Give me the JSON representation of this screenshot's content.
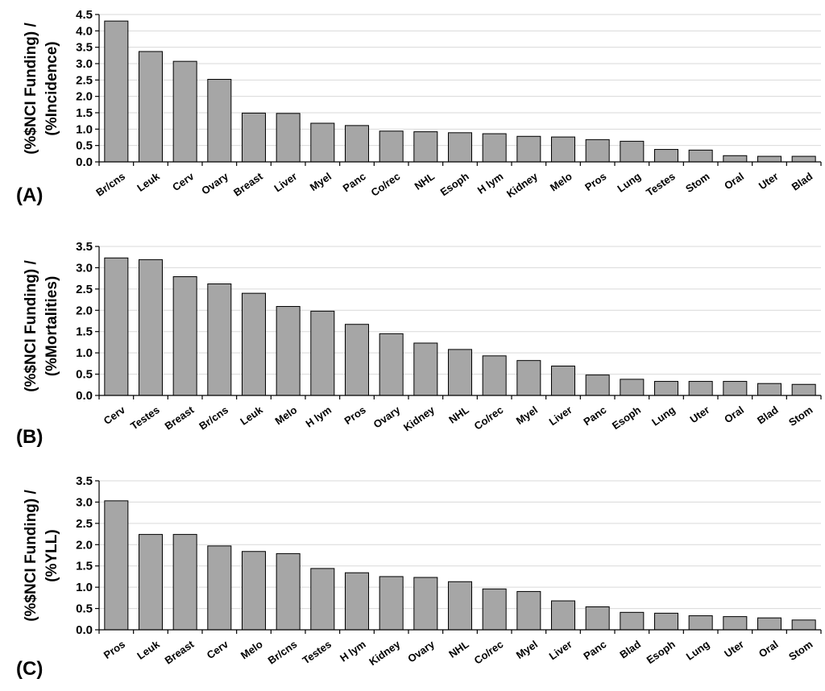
{
  "style": {
    "bar_color": "#a6a6a6",
    "grid_color": "#d9d9d9"
  },
  "chart_data": [
    {
      "type": "bar",
      "panel_label": "(A)",
      "ylabel": [
        "(%$NCI Funding) /",
        "(%Incidence)"
      ],
      "ylim": [
        0,
        4.5
      ],
      "yticks": [
        "0.0",
        "0.5",
        "1.0",
        "1.5",
        "2.0",
        "2.5",
        "3.0",
        "3.5",
        "4.0",
        "4.5"
      ],
      "grid": true,
      "categories": [
        "Br/cns",
        "Leuk",
        "Cerv",
        "Ovary",
        "Breast",
        "Liver",
        "Myel",
        "Panc",
        "Co/rec",
        "NHL",
        "Esoph",
        "H lym",
        "Kidney",
        "Melo",
        "Pros",
        "Lung",
        "Testes",
        "Stom",
        "Oral",
        "Uter",
        "Blad"
      ],
      "values": [
        4.3,
        3.37,
        3.07,
        2.52,
        1.49,
        1.48,
        1.18,
        1.11,
        0.94,
        0.92,
        0.89,
        0.86,
        0.78,
        0.76,
        0.68,
        0.63,
        0.38,
        0.36,
        0.19,
        0.17,
        0.17
      ]
    },
    {
      "type": "bar",
      "panel_label": "(B)",
      "ylabel": [
        "(%$NCI Funding) /",
        "(%Mortalities)"
      ],
      "ylim": [
        0,
        3.5
      ],
      "yticks": [
        "0.0",
        "0.5",
        "1.0",
        "1.5",
        "2.0",
        "2.5",
        "3.0",
        "3.5"
      ],
      "grid": true,
      "categories": [
        "Cerv",
        "Testes",
        "Breast",
        "Br/cns",
        "Leuk",
        "Melo",
        "H lym",
        "Pros",
        "Ovary",
        "Kidney",
        "NHL",
        "Co/rec",
        "Myel",
        "Liver",
        "Panc",
        "Esoph",
        "Lung",
        "Uter",
        "Oral",
        "Blad",
        "Stom"
      ],
      "values": [
        3.23,
        3.19,
        2.79,
        2.62,
        2.4,
        2.09,
        1.98,
        1.67,
        1.45,
        1.23,
        1.08,
        0.93,
        0.82,
        0.69,
        0.48,
        0.38,
        0.33,
        0.33,
        0.33,
        0.28,
        0.26
      ]
    },
    {
      "type": "bar",
      "panel_label": "(C)",
      "ylabel": [
        "(%$NCI Funding) /",
        "(%YLL)"
      ],
      "ylim": [
        0,
        3.5
      ],
      "yticks": [
        "0.0",
        "0.5",
        "1.0",
        "1.5",
        "2.0",
        "2.5",
        "3.0",
        "3.5"
      ],
      "grid": true,
      "categories": [
        "Pros",
        "Leuk",
        "Breast",
        "Cerv",
        "Melo",
        "Br/cns",
        "Testes",
        "H lym",
        "Kidney",
        "Ovary",
        "NHL",
        "Co/rec",
        "Myel",
        "Liver",
        "Panc",
        "Blad",
        "Esoph",
        "Lung",
        "Uter",
        "Oral",
        "Stom"
      ],
      "values": [
        3.03,
        2.24,
        2.24,
        1.97,
        1.84,
        1.79,
        1.44,
        1.34,
        1.25,
        1.23,
        1.13,
        0.96,
        0.9,
        0.68,
        0.54,
        0.41,
        0.39,
        0.33,
        0.31,
        0.28,
        0.23
      ]
    }
  ]
}
